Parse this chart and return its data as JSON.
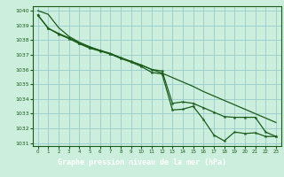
{
  "title": "Graphe pression niveau de la mer (hPa)",
  "bg_color": "#cceedd",
  "plot_bg": "#cceedd",
  "grid_color": "#99cccc",
  "line_color": "#1a5c1a",
  "title_bg": "#3a7a3a",
  "title_fg": "#ffffff",
  "xlim": [
    -0.5,
    23.5
  ],
  "ylim": [
    1030.8,
    1040.3
  ],
  "yticks": [
    1031,
    1032,
    1033,
    1034,
    1035,
    1036,
    1037,
    1038,
    1039,
    1040
  ],
  "xticks": [
    0,
    1,
    2,
    3,
    4,
    5,
    6,
    7,
    8,
    9,
    10,
    11,
    12,
    13,
    14,
    15,
    16,
    17,
    18,
    19,
    20,
    21,
    22,
    23
  ],
  "series1_y": [
    1039.7,
    1038.8,
    1038.4,
    1038.1,
    1037.75,
    1037.45,
    1037.25,
    1037.05,
    1036.75,
    1036.5,
    1036.2,
    1035.8,
    1035.7,
    1033.25,
    1033.3,
    1033.5,
    1032.6,
    1031.55,
    1031.15,
    1031.75,
    1031.65,
    1031.7,
    1031.45,
    1031.45
  ],
  "series2_y": [
    1039.7,
    1038.8,
    1038.45,
    1038.15,
    1037.8,
    1037.5,
    1037.3,
    1037.05,
    1036.8,
    1036.55,
    1036.3,
    1036.0,
    1035.9,
    1033.7,
    1033.8,
    1033.7,
    1033.4,
    1033.1,
    1032.8,
    1032.75,
    1032.75,
    1032.75,
    1031.75,
    1031.45
  ],
  "series3_y": [
    1040.0,
    1039.75,
    1038.85,
    1038.25,
    1037.85,
    1037.55,
    1037.3,
    1037.1,
    1036.8,
    1036.55,
    1036.3,
    1036.0,
    1035.75,
    1035.45,
    1035.15,
    1034.85,
    1034.5,
    1034.2,
    1033.9,
    1033.6,
    1033.3,
    1033.0,
    1032.7,
    1032.4
  ]
}
